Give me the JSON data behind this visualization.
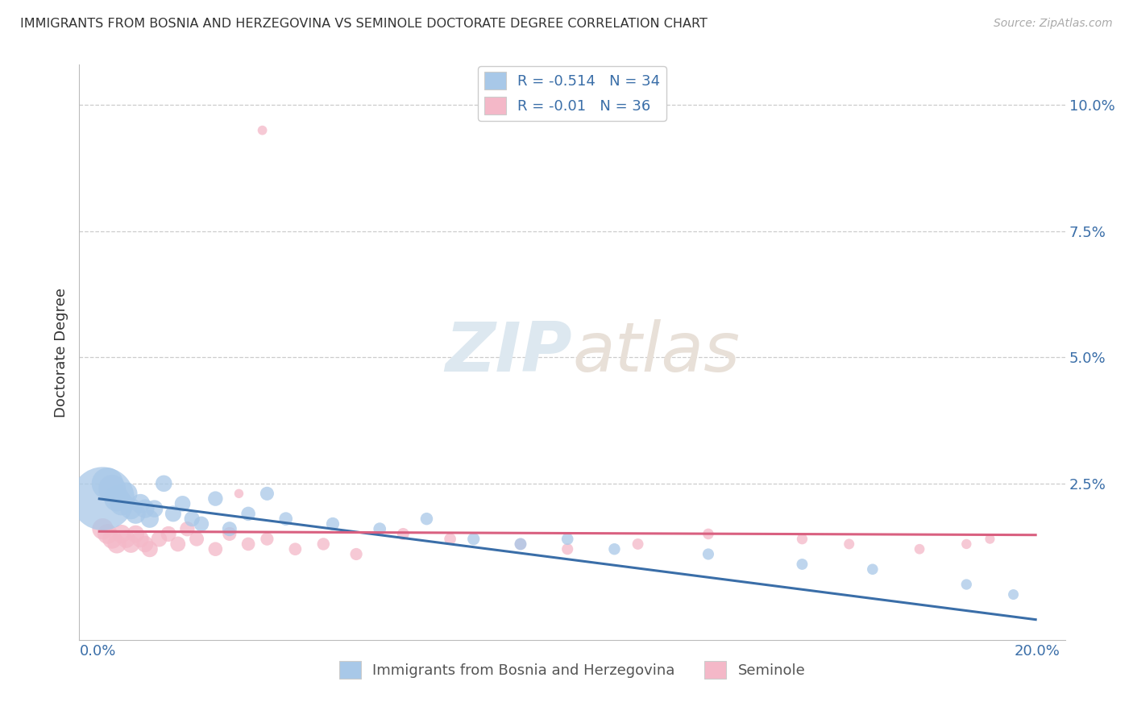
{
  "title": "IMMIGRANTS FROM BOSNIA AND HERZEGOVINA VS SEMINOLE DOCTORATE DEGREE CORRELATION CHART",
  "source": "Source: ZipAtlas.com",
  "ylabel": "Doctorate Degree",
  "blue_R": -0.514,
  "blue_N": 34,
  "pink_R": -0.01,
  "pink_N": 36,
  "blue_color": "#a8c8e8",
  "blue_line_color": "#3a6ea8",
  "pink_color": "#f4b8c8",
  "pink_line_color": "#d96080",
  "watermark_zip": "ZIP",
  "watermark_atlas": "atlas",
  "background_color": "#ffffff",
  "blue_x": [
    0.001,
    0.002,
    0.003,
    0.004,
    0.005,
    0.006,
    0.007,
    0.008,
    0.009,
    0.01,
    0.011,
    0.012,
    0.014,
    0.016,
    0.018,
    0.02,
    0.022,
    0.025,
    0.028,
    0.032,
    0.036,
    0.04,
    0.05,
    0.06,
    0.07,
    0.08,
    0.09,
    0.1,
    0.11,
    0.13,
    0.15,
    0.165,
    0.185,
    0.195
  ],
  "blue_y": [
    0.022,
    0.025,
    0.024,
    0.022,
    0.021,
    0.023,
    0.02,
    0.019,
    0.021,
    0.02,
    0.018,
    0.02,
    0.025,
    0.019,
    0.021,
    0.018,
    0.017,
    0.022,
    0.016,
    0.019,
    0.023,
    0.018,
    0.017,
    0.016,
    0.018,
    0.014,
    0.013,
    0.014,
    0.012,
    0.011,
    0.009,
    0.008,
    0.005,
    0.003
  ],
  "blue_sizes": [
    800,
    200,
    150,
    130,
    110,
    100,
    90,
    80,
    75,
    70,
    65,
    60,
    55,
    52,
    50,
    48,
    45,
    44,
    42,
    40,
    38,
    36,
    34,
    32,
    31,
    30,
    29,
    28,
    27,
    26,
    25,
    24,
    23,
    22
  ],
  "pink_x": [
    0.001,
    0.002,
    0.003,
    0.004,
    0.005,
    0.006,
    0.007,
    0.008,
    0.009,
    0.01,
    0.011,
    0.013,
    0.015,
    0.017,
    0.019,
    0.021,
    0.025,
    0.028,
    0.032,
    0.036,
    0.042,
    0.048,
    0.055,
    0.065,
    0.075,
    0.09,
    0.1,
    0.115,
    0.13,
    0.15,
    0.16,
    0.175,
    0.185,
    0.19,
    0.035,
    0.03
  ],
  "pink_y": [
    0.016,
    0.015,
    0.014,
    0.013,
    0.015,
    0.014,
    0.013,
    0.015,
    0.014,
    0.013,
    0.012,
    0.014,
    0.015,
    0.013,
    0.016,
    0.014,
    0.012,
    0.015,
    0.013,
    0.014,
    0.012,
    0.013,
    0.011,
    0.015,
    0.014,
    0.013,
    0.012,
    0.013,
    0.015,
    0.014,
    0.013,
    0.012,
    0.013,
    0.014,
    0.095,
    0.023
  ],
  "pink_sizes": [
    90,
    80,
    75,
    70,
    68,
    65,
    62,
    60,
    58,
    55,
    52,
    50,
    48,
    46,
    44,
    42,
    40,
    38,
    36,
    34,
    32,
    31,
    30,
    29,
    28,
    27,
    26,
    25,
    24,
    23,
    22,
    21,
    20,
    19,
    18,
    17
  ],
  "ytick_vals": [
    0.0,
    0.025,
    0.05,
    0.075,
    0.1
  ],
  "ytick_labels": [
    "",
    "2.5%",
    "5.0%",
    "7.5%",
    "10.0%"
  ],
  "xtick_vals": [
    0.0,
    0.05,
    0.1,
    0.15,
    0.2
  ],
  "xtick_labels": [
    "0.0%",
    "",
    "",
    "",
    "20.0%"
  ],
  "xlim": [
    -0.004,
    0.206
  ],
  "ylim": [
    -0.006,
    0.108
  ],
  "blue_legend_label": "Immigrants from Bosnia and Herzegovina",
  "pink_legend_label": "Seminole"
}
